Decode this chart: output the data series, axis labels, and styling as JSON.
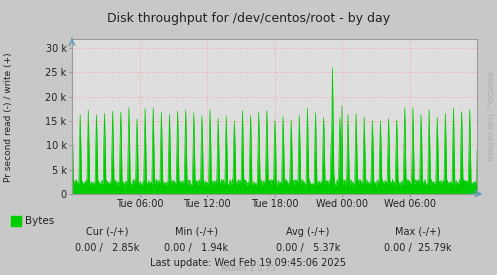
{
  "title": "Disk throughput for /dev/centos/root - by day",
  "ylabel": "Pr second read (-) / write (+)",
  "xlabel_ticks": [
    "Tue 06:00",
    "Tue 12:00",
    "Tue 18:00",
    "Wed 00:00",
    "Wed 06:00"
  ],
  "ylim": [
    0,
    32000
  ],
  "yticks": [
    0,
    5000,
    10000,
    15000,
    20000,
    25000,
    30000
  ],
  "ytick_labels": [
    "0",
    "5 k",
    "10 k",
    "15 k",
    "20 k",
    "25 k",
    "30 k"
  ],
  "bg_color": "#c8c8c8",
  "plot_bg_color": "#dedede",
  "grid_color": "#ff9999",
  "grid_style": "dotted",
  "line_color_write": "#00cc00",
  "fill_color_write": "#00cc00",
  "spine_color": "#aaaaaa",
  "legend_label": "Bytes",
  "legend_color": "#00cc00",
  "footer_last": "Last update: Wed Feb 19 09:45:06 2025",
  "footer_munin": "Munin 2.0.75",
  "rrdtool_label": "RRDTOOL / TOBI OETIKER",
  "num_points": 600,
  "spike_index": 385,
  "spike_value": 26000,
  "regular_spike_value": 16500,
  "baseline_value": 2200,
  "period": 12
}
